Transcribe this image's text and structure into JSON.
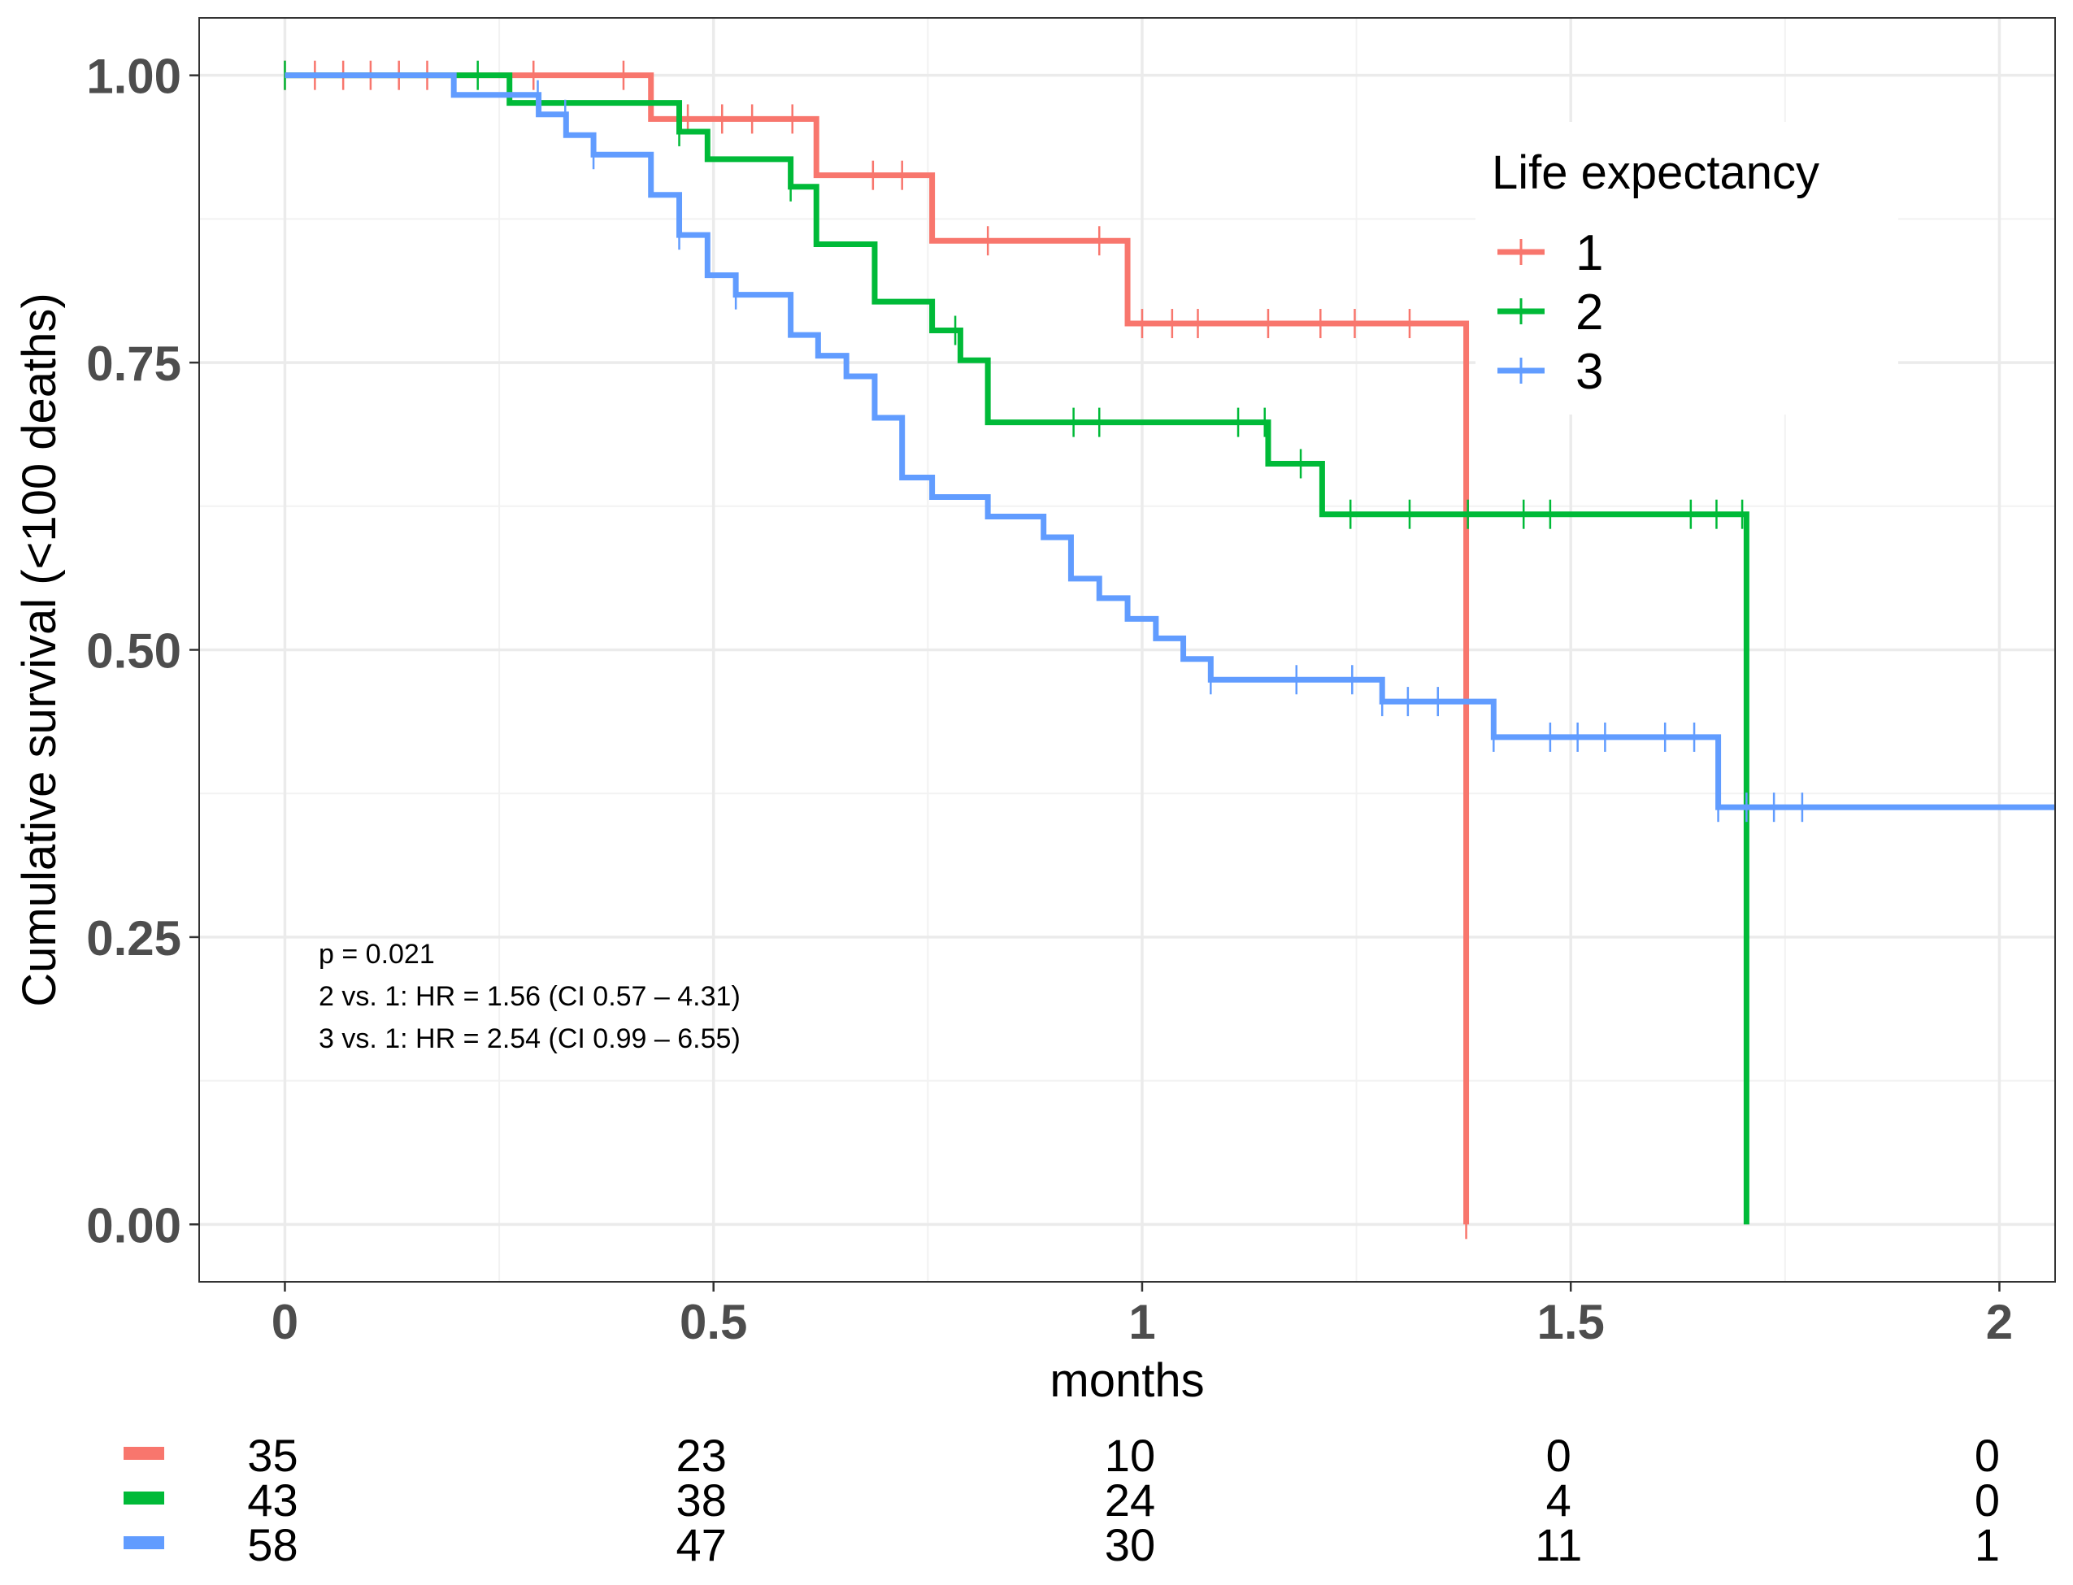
{
  "chart_data": {
    "type": "line",
    "subtype": "kaplan-meier",
    "title": "",
    "xlabel": "months",
    "ylabel": "Cumulative survival (<100 deaths)",
    "xlim": [
      -0.1,
      2.065
    ],
    "ylim": [
      -0.05,
      1.05
    ],
    "x_ticks": [
      0,
      0.5,
      1,
      1.5,
      2
    ],
    "x_tick_labels": [
      "0",
      "0.5",
      "1",
      "1.5",
      "2"
    ],
    "y_ticks": [
      0,
      0.25,
      0.5,
      0.75,
      1
    ],
    "y_tick_labels": [
      "0.00",
      "0.25",
      "0.50",
      "0.75",
      "1.00"
    ],
    "grid": true,
    "legend": {
      "title": "Life expectancy",
      "placement": "top-right"
    },
    "series": [
      {
        "name": "1",
        "color": "#F8766D",
        "steps": [
          [
            0,
            1.0
          ],
          [
            0.427,
            0.962
          ],
          [
            0.62,
            0.913
          ],
          [
            0.755,
            0.856
          ],
          [
            0.983,
            0.784
          ],
          [
            1.378,
            0.0
          ]
        ],
        "censor": [
          0.0,
          0.035,
          0.068,
          0.1,
          0.133,
          0.166,
          0.29,
          0.395,
          0.47,
          0.51,
          0.545,
          0.592,
          0.686,
          0.72,
          0.82,
          0.95,
          1.0,
          1.035,
          1.065,
          1.147,
          1.208,
          1.248,
          1.312,
          1.378
        ]
      },
      {
        "name": "2",
        "color": "#00BA38",
        "steps": [
          [
            0,
            1.0
          ],
          [
            0.262,
            0.976
          ],
          [
            0.46,
            0.951
          ],
          [
            0.493,
            0.927
          ],
          [
            0.59,
            0.903
          ],
          [
            0.62,
            0.853
          ],
          [
            0.688,
            0.803
          ],
          [
            0.755,
            0.778
          ],
          [
            0.788,
            0.752
          ],
          [
            0.82,
            0.698
          ],
          [
            1.147,
            0.662
          ],
          [
            1.21,
            0.618
          ],
          [
            1.705,
            0.0
          ]
        ],
        "censor": [
          0.0,
          0.225,
          0.46,
          0.59,
          0.782,
          0.92,
          0.95,
          1.112,
          1.143,
          1.185,
          1.243,
          1.312,
          1.38,
          1.445,
          1.476,
          1.64,
          1.67,
          1.7
        ]
      },
      {
        "name": "3",
        "color": "#619CFF",
        "steps": [
          [
            0,
            1.0
          ],
          [
            0.197,
            0.983
          ],
          [
            0.296,
            0.966
          ],
          [
            0.328,
            0.948
          ],
          [
            0.36,
            0.931
          ],
          [
            0.427,
            0.896
          ],
          [
            0.46,
            0.861
          ],
          [
            0.493,
            0.826
          ],
          [
            0.526,
            0.809
          ],
          [
            0.59,
            0.774
          ],
          [
            0.622,
            0.756
          ],
          [
            0.655,
            0.738
          ],
          [
            0.688,
            0.702
          ],
          [
            0.72,
            0.65
          ],
          [
            0.755,
            0.633
          ],
          [
            0.82,
            0.616
          ],
          [
            0.885,
            0.598
          ],
          [
            0.917,
            0.562
          ],
          [
            0.95,
            0.545
          ],
          [
            0.983,
            0.527
          ],
          [
            1.016,
            0.51
          ],
          [
            1.048,
            0.492
          ],
          [
            1.08,
            0.474
          ],
          [
            1.28,
            0.455
          ],
          [
            1.41,
            0.424
          ],
          [
            1.672,
            0.363
          ],
          [
            2.065,
            0.363
          ]
        ],
        "censor": [
          0.295,
          0.327,
          0.36,
          0.46,
          0.526,
          1.08,
          1.18,
          1.245,
          1.28,
          1.31,
          1.345,
          1.41,
          1.476,
          1.508,
          1.54,
          1.61,
          1.644,
          1.672,
          1.705,
          1.737,
          1.77
        ]
      }
    ],
    "annotations": [
      "p = 0.021",
      "2 vs. 1: HR = 1.56 (CI 0.57 – 4.31)",
      "3 vs. 1: HR = 2.54 (CI 0.99 – 6.55)"
    ],
    "risk_table": {
      "times": [
        0,
        0.5,
        1,
        1.5,
        2
      ],
      "rows": [
        {
          "color": "#F8766D",
          "values": [
            "35",
            "23",
            "10",
            "0",
            "0"
          ]
        },
        {
          "color": "#00BA38",
          "values": [
            "43",
            "38",
            "24",
            "4",
            "0"
          ]
        },
        {
          "color": "#619CFF",
          "values": [
            "58",
            "47",
            "30",
            "11",
            "1"
          ]
        }
      ]
    }
  }
}
